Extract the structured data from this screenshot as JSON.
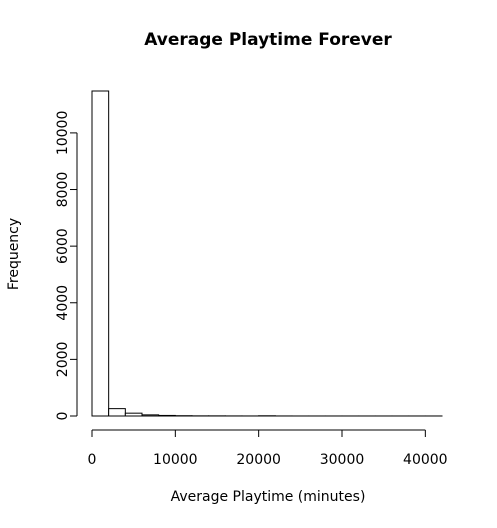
{
  "chart_data": {
    "type": "histogram",
    "title": "Average Playtime Forever",
    "x_label": "Average Playtime (minutes)",
    "y_label": "Frequency",
    "bins": [
      0,
      2000,
      4000,
      6000,
      8000,
      10000,
      12000,
      14000,
      16000,
      18000,
      20000,
      22000,
      24000,
      26000,
      28000,
      30000,
      32000,
      34000,
      36000,
      38000,
      40000,
      42000
    ],
    "values": [
      11480,
      260,
      100,
      40,
      20,
      10,
      5,
      5,
      3,
      2,
      8,
      2,
      1,
      1,
      1,
      1,
      1,
      1,
      1,
      1,
      1
    ],
    "color": "#ffffff",
    "xlim": [
      0,
      42000
    ],
    "ylim": [
      0,
      11480
    ],
    "xticks": [
      0,
      10000,
      20000,
      30000,
      40000
    ],
    "yticks": [
      0,
      2000,
      4000,
      6000,
      8000,
      10000
    ]
  }
}
